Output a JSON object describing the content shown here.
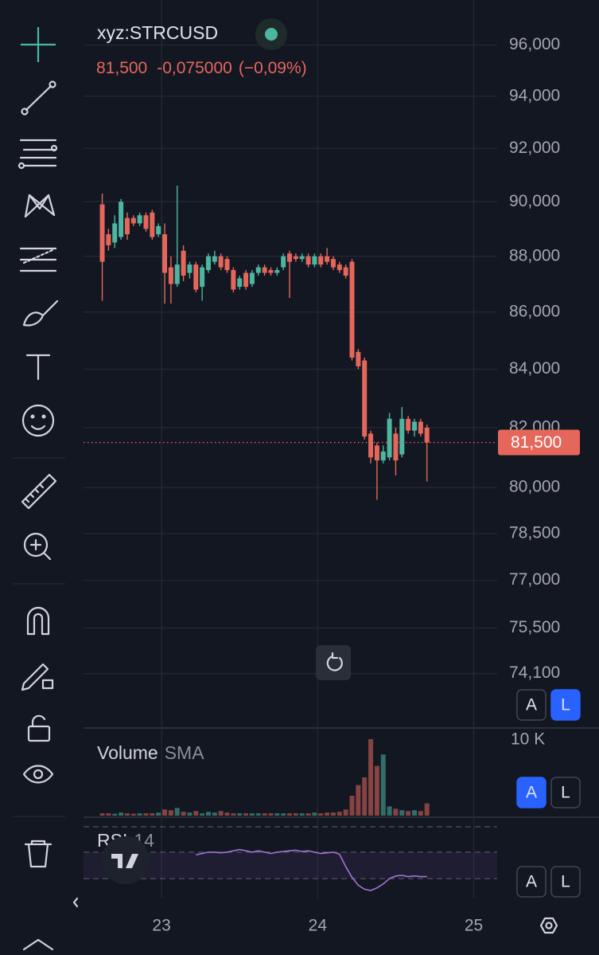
{
  "chart_data": [
    {
      "type": "candlestick",
      "symbol": "xyz:STRCUSD",
      "last_price": {
        "value": 81500,
        "label": "81,500"
      },
      "change": {
        "value": -0.075,
        "label": "-0,075000"
      },
      "change_percent": {
        "value": -0.09,
        "label": "(−0,09%)"
      },
      "x": [
        22.62,
        22.66,
        22.7,
        22.74,
        22.78,
        22.82,
        22.86,
        22.9,
        22.94,
        22.98,
        23.02,
        23.06,
        23.1,
        23.14,
        23.18,
        23.22,
        23.26,
        23.3,
        23.34,
        23.38,
        23.42,
        23.46,
        23.5,
        23.54,
        23.58,
        23.62,
        23.66,
        23.7,
        23.74,
        23.78,
        23.82,
        23.86,
        23.9,
        23.94,
        23.98,
        24.02,
        24.06,
        24.1,
        24.14,
        24.18,
        24.22,
        24.26,
        24.3,
        24.34,
        24.38,
        24.42,
        24.46,
        24.5,
        24.54,
        24.58,
        24.62,
        24.66,
        24.7
      ],
      "open": [
        89900,
        88800,
        88500,
        88700,
        89400,
        89400,
        89200,
        89500,
        89600,
        88800,
        88800,
        87600,
        87000,
        88200,
        87400,
        87700,
        86900,
        87500,
        87800,
        88000,
        87900,
        87500,
        86900,
        87400,
        87000,
        87400,
        87600,
        87500,
        87400,
        87600,
        88100,
        88000,
        87900,
        88000,
        87700,
        88000,
        88000,
        87900,
        87700,
        87600,
        87800,
        84600,
        84300,
        81800,
        81400,
        80900,
        81000,
        81800,
        81100,
        82300,
        81900,
        82200,
        82000
      ],
      "high": [
        90300,
        89000,
        89500,
        90100,
        89600,
        89500,
        89600,
        89600,
        89700,
        89200,
        89200,
        88000,
        90600,
        88400,
        87800,
        87800,
        87700,
        88100,
        88200,
        88100,
        88000,
        87600,
        87300,
        87500,
        87500,
        87700,
        87700,
        87600,
        87600,
        88100,
        88200,
        88100,
        88100,
        88100,
        88100,
        88100,
        88300,
        88000,
        87800,
        87700,
        87900,
        84700,
        84400,
        81900,
        81500,
        81400,
        82500,
        82000,
        82700,
        82400,
        82300,
        82300,
        82100
      ],
      "low": [
        86400,
        88200,
        88300,
        88600,
        88600,
        89100,
        89100,
        88900,
        88600,
        88700,
        86300,
        86300,
        86900,
        87100,
        87200,
        86700,
        86400,
        87400,
        87700,
        87500,
        87400,
        86700,
        86800,
        86800,
        86900,
        87300,
        87300,
        87300,
        87300,
        87500,
        86500,
        87800,
        87800,
        87600,
        87600,
        87600,
        87700,
        87500,
        87400,
        87200,
        84300,
        84000,
        81600,
        80800,
        79600,
        80800,
        80900,
        80400,
        81000,
        81800,
        81700,
        81700,
        80200
      ],
      "close": [
        87800,
        88400,
        89200,
        90000,
        88800,
        89200,
        89500,
        89000,
        88700,
        89100,
        87400,
        87000,
        87700,
        87300,
        87700,
        86800,
        87600,
        88000,
        88000,
        87600,
        87500,
        86800,
        87200,
        86900,
        87400,
        87600,
        87400,
        87400,
        87500,
        88000,
        87800,
        87900,
        88000,
        87700,
        88000,
        87700,
        87800,
        87600,
        87500,
        87300,
        84400,
        84100,
        81700,
        81000,
        80900,
        81200,
        82300,
        80900,
        82300,
        81900,
        82200,
        81800,
        81500
      ],
      "up_color": "#4db6a1",
      "down_color": "#e5675c",
      "xlim": [
        22.5,
        25.15
      ],
      "xticks": [
        23,
        24,
        25
      ],
      "ylim": [
        72550,
        97800
      ],
      "log_scale": true,
      "grid": true,
      "yticks": [
        {
          "value": 96000,
          "label": "96,000"
        },
        {
          "value": 94000,
          "label": "94,000"
        },
        {
          "value": 92000,
          "label": "92,000"
        },
        {
          "value": 90000,
          "label": "90,000"
        },
        {
          "value": 88000,
          "label": "88,000"
        },
        {
          "value": 86000,
          "label": "86,000"
        },
        {
          "value": 84000,
          "label": "84,000"
        },
        {
          "value": 82000,
          "label": "82,000"
        },
        {
          "value": 80000,
          "label": "80,000"
        },
        {
          "value": 78500,
          "label": "78,500"
        },
        {
          "value": 77000,
          "label": "77,000"
        },
        {
          "value": 75500,
          "label": "75,500"
        },
        {
          "value": 74100,
          "label": "74,100"
        }
      ],
      "scale_buttons": [
        "A",
        "L"
      ],
      "active_button": 1
    },
    {
      "type": "bar",
      "title": "Volume",
      "subtitle": "SMA",
      "x": [
        22.62,
        22.66,
        22.7,
        22.74,
        22.78,
        22.82,
        22.86,
        22.9,
        22.94,
        22.98,
        23.02,
        23.06,
        23.1,
        23.14,
        23.18,
        23.22,
        23.26,
        23.3,
        23.34,
        23.38,
        23.42,
        23.46,
        23.5,
        23.54,
        23.58,
        23.62,
        23.66,
        23.7,
        23.74,
        23.78,
        23.82,
        23.86,
        23.9,
        23.94,
        23.98,
        24.02,
        24.06,
        24.1,
        24.14,
        24.18,
        24.22,
        24.26,
        24.3,
        24.34,
        24.38,
        24.42,
        24.46,
        24.5,
        24.54,
        24.58,
        24.62,
        24.66,
        24.7
      ],
      "values": [
        300,
        300,
        250,
        400,
        300,
        250,
        300,
        300,
        300,
        400,
        800,
        700,
        1000,
        500,
        400,
        600,
        300,
        500,
        400,
        600,
        400,
        300,
        300,
        300,
        300,
        300,
        300,
        300,
        300,
        300,
        300,
        300,
        300,
        300,
        400,
        300,
        400,
        400,
        500,
        800,
        2600,
        4000,
        5000,
        10000,
        6500,
        8000,
        1200,
        900,
        700,
        600,
        700,
        600,
        1600
      ],
      "xlim": [
        22.5,
        25.15
      ],
      "ylim": [
        0,
        10000
      ],
      "yticks": [
        {
          "value": 10000,
          "label": "10 K"
        }
      ],
      "scale_buttons": [
        "A",
        "L"
      ],
      "active_button": 0
    },
    {
      "type": "line",
      "title": "RSI",
      "subtitle": "14",
      "color": "#a074d6",
      "x": [
        22.62,
        22.66,
        22.7,
        22.74,
        22.78,
        22.82,
        22.86,
        22.9,
        22.94,
        22.98,
        23.02,
        23.06,
        23.1,
        23.14,
        23.18,
        23.22,
        23.26,
        23.3,
        23.34,
        23.38,
        23.42,
        23.46,
        23.5,
        23.54,
        23.58,
        23.62,
        23.66,
        23.7,
        23.74,
        23.78,
        23.82,
        23.86,
        23.9,
        23.94,
        23.98,
        24.02,
        24.06,
        24.1,
        24.14,
        24.18,
        24.22,
        24.26,
        24.3,
        24.34,
        24.38,
        24.42,
        24.46,
        24.5,
        24.54,
        24.58,
        24.62,
        24.66,
        24.7
      ],
      "values": [
        null,
        null,
        null,
        null,
        null,
        null,
        null,
        null,
        null,
        null,
        null,
        null,
        null,
        null,
        null,
        66,
        68,
        70,
        70,
        69,
        70,
        72,
        74,
        72,
        70,
        72,
        70,
        68,
        70,
        71,
        72,
        73,
        71,
        72,
        70,
        68,
        69,
        70,
        67,
        48,
        32,
        20,
        14,
        12,
        16,
        22,
        30,
        34,
        35,
        33,
        34,
        33,
        33
      ],
      "xlim": [
        22.5,
        25.15
      ],
      "ylim": [
        0,
        100
      ],
      "bands": [
        30,
        70
      ],
      "scale_buttons": [
        "A",
        "L"
      ]
    }
  ]
}
